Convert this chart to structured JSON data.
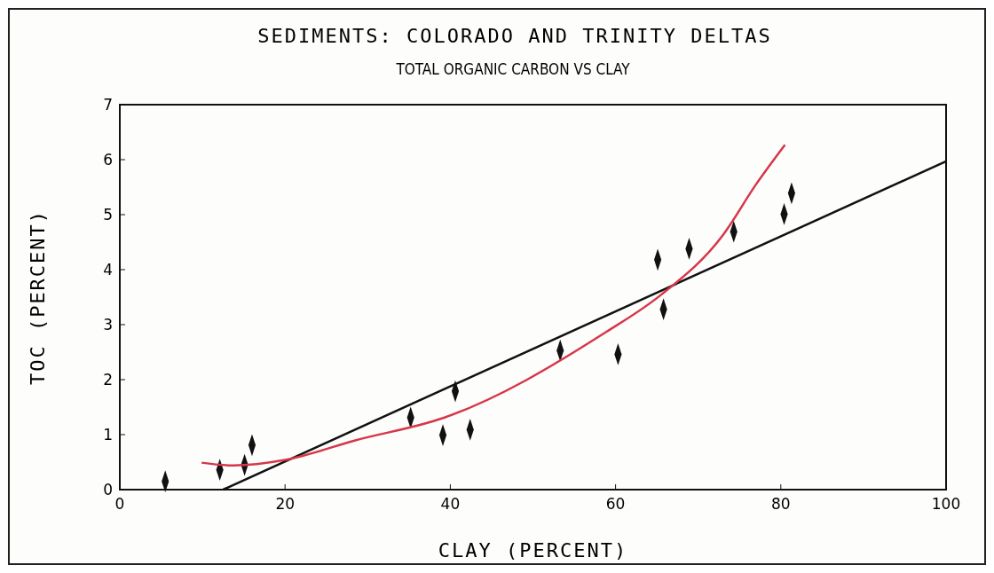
{
  "chart_data": {
    "type": "scatter",
    "title": "SEDIMENTS:   COLORADO AND TRINITY DELTAS",
    "subtitle": "TOTAL ORGANIC CARBON VS CLAY",
    "xlabel": "CLAY (PERCENT)",
    "ylabel": "TOC (PERCENT)",
    "xlim": [
      0,
      100
    ],
    "xticks": [
      0,
      20,
      40,
      60,
      80,
      100
    ],
    "ylim": [
      0,
      7
    ],
    "yticks": [
      0,
      1,
      2,
      3,
      4,
      5,
      6,
      7
    ],
    "grid": false,
    "series": [
      {
        "color": "#111111",
        "marker": "diamond",
        "x": [
          5.5,
          12.1,
          15.1,
          16.0,
          35.2,
          39.1,
          40.6,
          42.4,
          53.3,
          60.3,
          65.1,
          65.8,
          68.9,
          74.3,
          80.4,
          81.3
        ],
        "values": [
          0.15,
          0.36,
          0.45,
          0.81,
          1.31,
          0.99,
          1.79,
          1.09,
          2.53,
          2.46,
          4.18,
          3.28,
          4.38,
          4.69,
          5.01,
          5.39
        ]
      },
      {
        "type": "line",
        "color": "#111111",
        "line_style": "solid",
        "x": [
          12.5,
          100
        ],
        "values": [
          0,
          5.97
        ]
      },
      {
        "type": "line",
        "color": "#d6364a",
        "line_style": "solid",
        "x": [
          9.9,
          13.7,
          20,
          28.6,
          39.3,
          58.9,
          65.4,
          73,
          77,
          80.5
        ],
        "values": [
          0.49,
          0.44,
          0.54,
          0.9,
          1.31,
          2.87,
          3.53,
          4.63,
          5.55,
          6.27
        ]
      }
    ]
  }
}
